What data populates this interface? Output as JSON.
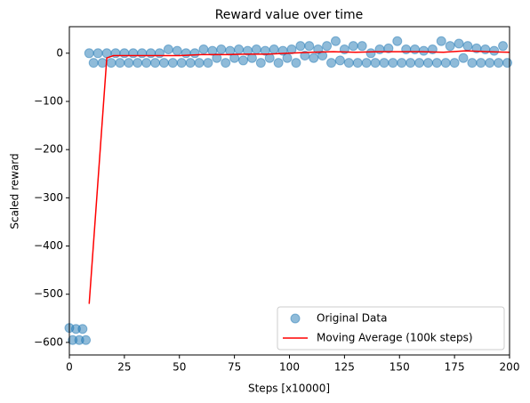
{
  "chart_data": {
    "type": "scatter",
    "title": "Reward value over time",
    "x_label": "Steps [x10000]",
    "y_label": "Scaled reward",
    "xlim": [
      0,
      200
    ],
    "ylim": [
      -626,
      55
    ],
    "xticks": [
      0,
      25,
      50,
      75,
      100,
      125,
      150,
      175,
      200
    ],
    "yticks": [
      {
        "value": -600,
        "label": "−600"
      },
      {
        "value": -500,
        "label": "−500"
      },
      {
        "value": -400,
        "label": "−400"
      },
      {
        "value": -300,
        "label": "−300"
      },
      {
        "value": -200,
        "label": "−200"
      },
      {
        "value": -100,
        "label": "−100"
      },
      0
    ],
    "legend": "lower right",
    "series": [
      {
        "name": "Original Data",
        "type": "scatter",
        "color": "#1f77b4",
        "x": [
          0,
          1.5,
          3,
          4.5,
          6,
          7.5,
          9,
          11,
          13,
          15,
          17,
          19,
          21,
          23,
          25,
          27,
          29,
          31,
          33,
          35,
          37,
          39,
          41,
          43,
          45,
          47,
          49,
          51,
          53,
          55,
          57,
          59,
          61,
          63,
          65,
          67,
          69,
          71,
          73,
          75,
          77,
          79,
          81,
          83,
          85,
          87,
          89,
          91,
          93,
          95,
          97,
          99,
          101,
          103,
          105,
          107,
          109,
          111,
          113,
          115,
          117,
          119,
          121,
          123,
          125,
          127,
          129,
          131,
          133,
          135,
          137,
          139,
          141,
          143,
          145,
          147,
          149,
          151,
          153,
          155,
          157,
          159,
          161,
          163,
          165,
          167,
          169,
          171,
          173,
          175,
          177,
          179,
          181,
          183,
          185,
          187,
          189,
          191,
          193,
          195,
          197,
          199
        ],
        "values": [
          -570,
          -595,
          -572,
          -595,
          -572,
          -595,
          0,
          -20,
          0,
          -20,
          0,
          -20,
          0,
          -20,
          0,
          -20,
          0,
          -20,
          0,
          -20,
          0,
          -20,
          0,
          -20,
          8,
          -20,
          5,
          -20,
          0,
          -20,
          0,
          -20,
          8,
          -20,
          5,
          -10,
          8,
          -20,
          5,
          -10,
          8,
          -15,
          5,
          -10,
          8,
          -20,
          5,
          -10,
          8,
          -20,
          5,
          -10,
          8,
          -20,
          15,
          -5,
          15,
          -10,
          8,
          -5,
          15,
          -20,
          25,
          -15,
          8,
          -20,
          15,
          -20,
          15,
          -20,
          0,
          -20,
          8,
          -20,
          10,
          -20,
          25,
          -20,
          8,
          -20,
          8,
          -20,
          5,
          -20,
          8,
          -20,
          25,
          -20,
          15,
          -20,
          20,
          -10,
          15,
          -20,
          10,
          -20,
          8,
          -20,
          5,
          -20,
          15,
          -20
        ]
      },
      {
        "name": "Moving Average (100k steps)",
        "type": "line",
        "color": "#ff0000",
        "x": [
          9,
          17,
          20,
          30,
          40,
          50,
          60,
          70,
          80,
          90,
          100,
          110,
          120,
          130,
          140,
          150,
          160,
          170,
          180,
          190,
          200
        ],
        "values": [
          -520,
          -10,
          -5,
          -5,
          -5,
          -5,
          -3,
          -3,
          -2,
          -2,
          0,
          2,
          3,
          2,
          3,
          3,
          3,
          2,
          5,
          3,
          2
        ]
      }
    ]
  }
}
